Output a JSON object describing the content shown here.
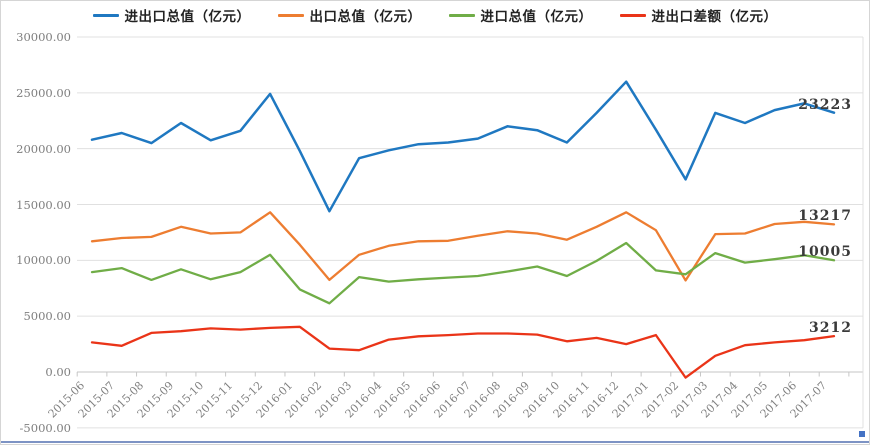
{
  "chart_data": {
    "type": "line",
    "title": "",
    "unit": "亿元",
    "legend_position": "top",
    "grid": true,
    "x_axis": {
      "labels": [
        "2015-06",
        "2015-07",
        "2015-08",
        "2015-09",
        "2015-10",
        "2015-11",
        "2015-12",
        "2016-01",
        "2016-02",
        "2016-03",
        "2016-04",
        "2016-05",
        "2016-06",
        "2016-07",
        "2016-08",
        "2016-09",
        "2016-10",
        "2016-11",
        "2016-12",
        "2017-01",
        "2017-02",
        "2017-03",
        "2017-04",
        "2017-05",
        "2017-06",
        "2017-07"
      ]
    },
    "y_axis": {
      "min": -5000,
      "max": 30000,
      "step": 5000,
      "tick_labels": [
        "30000.00",
        "25000.00",
        "20000.00",
        "15000.00",
        "10000.00",
        "5000.00",
        "0.00",
        "-5000.00"
      ]
    },
    "series": [
      {
        "key": "total",
        "name": "进出口总值（亿元）",
        "color": "#1f78c1",
        "end_label": "23223",
        "values": [
          20800,
          21400,
          20500,
          22300,
          20750,
          21600,
          24900,
          19800,
          14400,
          19150,
          19850,
          20400,
          20550,
          20900,
          22000,
          21650,
          20550,
          23200,
          26000,
          21700,
          17250,
          23200,
          22300,
          23450,
          24050,
          23223
        ]
      },
      {
        "key": "export",
        "name": "出口总值（亿元）",
        "color": "#ed7d31",
        "end_label": "13217",
        "values": [
          11700,
          12000,
          12100,
          13000,
          12400,
          12500,
          14300,
          11400,
          8250,
          10500,
          11300,
          11700,
          11750,
          12200,
          12600,
          12400,
          11850,
          13000,
          14300,
          12700,
          8200,
          12350,
          12400,
          13250,
          13450,
          13217
        ]
      },
      {
        "key": "import",
        "name": "进口总值（亿元）",
        "color": "#70ad47",
        "end_label": "10005",
        "values": [
          8950,
          9300,
          8250,
          9200,
          8300,
          8950,
          10500,
          7400,
          6150,
          8500,
          8100,
          8300,
          8450,
          8600,
          9000,
          9450,
          8600,
          9950,
          11550,
          9100,
          8750,
          10650,
          9800,
          10100,
          10450,
          10005
        ]
      },
      {
        "key": "balance",
        "name": "进出口差额（亿元）",
        "color": "#ea3418",
        "end_label": "3212",
        "values": [
          2650,
          2350,
          3500,
          3650,
          3900,
          3800,
          3950,
          4050,
          2100,
          1950,
          2900,
          3200,
          3300,
          3450,
          3450,
          3350,
          2750,
          3050,
          2500,
          3300,
          -500,
          1450,
          2400,
          2650,
          2850,
          3212
        ]
      }
    ],
    "style": {
      "gridline_color": "#e0e0e0",
      "axis_color": "#c6c6c6",
      "label_color": "#7f7f7f",
      "bottom_bar_color": "#7d93c4",
      "selection_dot_color": "#4472c4"
    }
  }
}
